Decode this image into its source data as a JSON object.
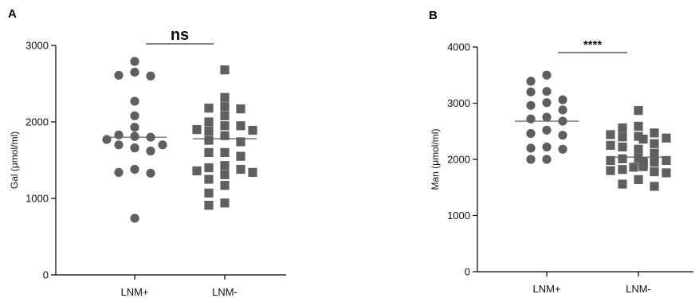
{
  "chart_data": [
    {
      "type": "scatter",
      "panel_label": "A",
      "ylabel": "Gal (μmol/ml)",
      "ylim": [
        0,
        3000
      ],
      "yticks": [
        0,
        1000,
        2000,
        3000
      ],
      "categories": [
        "LNM+",
        "LNM-"
      ],
      "significance": "ns",
      "color": "#5f5f5f",
      "series": [
        {
          "category": "LNM+",
          "marker": "circle",
          "mean": 1800,
          "values": [
            2790,
            2650,
            2610,
            2600,
            2270,
            2080,
            1930,
            1830,
            1810,
            1800,
            1770,
            1700,
            1700,
            1660,
            1620,
            1380,
            1340,
            1330,
            740
          ]
        },
        {
          "category": "LNM-",
          "marker": "square",
          "mean": 1780,
          "values": [
            2680,
            2320,
            2200,
            2180,
            2170,
            2080,
            2000,
            1950,
            1950,
            1900,
            1890,
            1880,
            1820,
            1760,
            1740,
            1600,
            1600,
            1550,
            1430,
            1400,
            1380,
            1360,
            1340,
            1310,
            1250,
            1170,
            1070,
            940,
            910
          ]
        }
      ]
    },
    {
      "type": "scatter",
      "panel_label": "B",
      "ylabel": "Man (μmol/ml)",
      "ylim": [
        0,
        4000
      ],
      "yticks": [
        0,
        1000,
        2000,
        3000,
        4000
      ],
      "categories": [
        "LNM+",
        "LNM-"
      ],
      "significance": "****",
      "color": "#5f5f5f",
      "series": [
        {
          "category": "LNM+",
          "marker": "circle",
          "mean": 2680,
          "values": [
            3500,
            3390,
            3210,
            3200,
            3060,
            3010,
            2960,
            2880,
            2750,
            2720,
            2680,
            2520,
            2460,
            2430,
            2220,
            2200,
            2180,
            2000,
            2000
          ]
        },
        {
          "category": "LNM-",
          "marker": "square",
          "mean": 2040,
          "values": [
            2870,
            2590,
            2560,
            2470,
            2440,
            2410,
            2400,
            2380,
            2360,
            2280,
            2250,
            2220,
            2180,
            2110,
            2020,
            2010,
            1980,
            1980,
            1960,
            1950,
            1950,
            1930,
            1920,
            1900,
            1880,
            1870,
            1860,
            1820,
            1800,
            1780,
            1760,
            1640,
            1560,
            1520
          ]
        }
      ]
    }
  ]
}
